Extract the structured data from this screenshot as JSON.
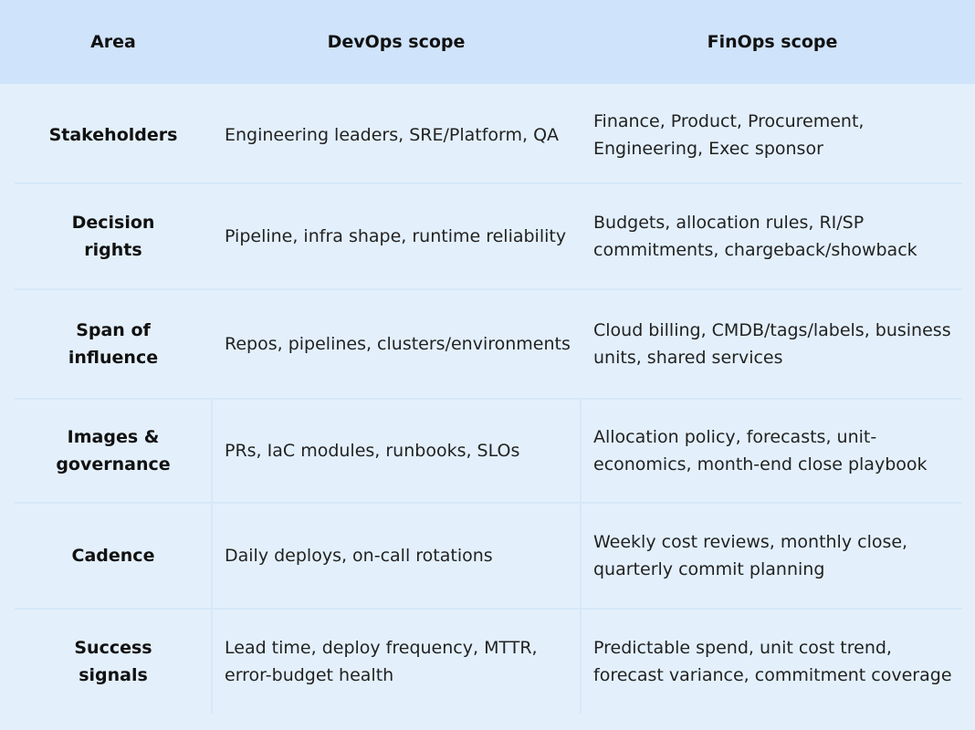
{
  "header": {
    "area": "Area",
    "devops": "DevOps scope",
    "finops": "FinOps scope"
  },
  "rows": [
    {
      "area": "Stakeholders",
      "devops": "Engineering leaders, SRE/Platform, QA",
      "finops": "Finance, Product, Procurement, Engineering, Exec sponsor"
    },
    {
      "area": "Decision rights",
      "devops": "Pipeline, infra shape, runtime reliability",
      "finops": "Budgets, allocation rules, RI/SP commitments, chargeback/showback"
    },
    {
      "area": "Span of influence",
      "devops": "Repos, pipelines, clusters/environments",
      "finops": "Cloud billing, CMDB/tags/labels, business units, shared services"
    },
    {
      "area": "Images & governance",
      "devops": "PRs, IaC modules, runbooks, SLOs",
      "finops": "Allocation policy, forecasts, unit-economics, month-end close playbook"
    },
    {
      "area": "Cadence",
      "devops": "Daily deploys, on-call rotations",
      "finops": "Weekly cost reviews, monthly close, quarterly commit planning"
    },
    {
      "area": "Success signals",
      "devops": "Lead time, deploy frequency, MTTR, error-budget health",
      "finops": "Predictable spend, unit cost trend, forecast variance, commitment coverage"
    }
  ]
}
